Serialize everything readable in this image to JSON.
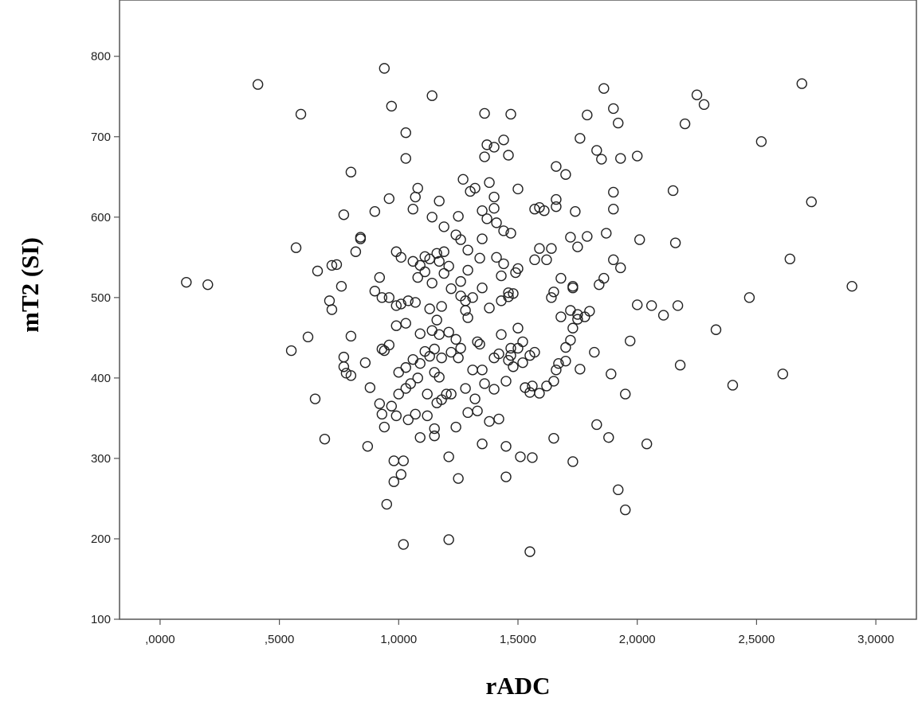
{
  "chart_data": {
    "type": "scatter",
    "title": "",
    "xlabel": "rADC",
    "ylabel": "mT2 (SI)",
    "xlim": [
      -0.17,
      3.17
    ],
    "ylim": [
      100,
      870
    ],
    "x_ticks": [
      0,
      0.5,
      1.0,
      1.5,
      2.0,
      2.5,
      3.0
    ],
    "x_tick_labels": [
      ",0000",
      ",5000",
      "1,0000",
      "1,5000",
      "2,0000",
      "2,5000",
      "3,0000"
    ],
    "y_ticks": [
      100,
      200,
      300,
      400,
      500,
      600,
      700,
      800
    ],
    "y_tick_labels": [
      "100",
      "200",
      "300",
      "400",
      "500",
      "600",
      "700",
      "800"
    ],
    "grid": false,
    "legend": "none",
    "marker": "open-circle",
    "marker_color": "#222222",
    "points": [
      [
        0.41,
        765
      ],
      [
        0.94,
        785
      ],
      [
        1.14,
        751
      ],
      [
        0.59,
        728
      ],
      [
        0.97,
        738
      ],
      [
        1.36,
        729
      ],
      [
        1.47,
        728
      ],
      [
        1.79,
        727
      ],
      [
        1.86,
        760
      ],
      [
        1.9,
        735
      ],
      [
        2.25,
        752
      ],
      [
        2.28,
        740
      ],
      [
        2.69,
        766
      ],
      [
        1.92,
        717
      ],
      [
        2.2,
        716
      ],
      [
        1.03,
        705
      ],
      [
        1.37,
        690
      ],
      [
        1.4,
        687
      ],
      [
        1.44,
        696
      ],
      [
        1.36,
        675
      ],
      [
        1.46,
        677
      ],
      [
        1.76,
        698
      ],
      [
        1.83,
        683
      ],
      [
        1.85,
        672
      ],
      [
        1.93,
        673
      ],
      [
        2.0,
        676
      ],
      [
        2.52,
        694
      ],
      [
        1.03,
        673
      ],
      [
        0.8,
        656
      ],
      [
        1.66,
        663
      ],
      [
        1.7,
        653
      ],
      [
        1.27,
        647
      ],
      [
        1.38,
        643
      ],
      [
        1.32,
        636
      ],
      [
        1.3,
        632
      ],
      [
        1.5,
        635
      ],
      [
        1.08,
        636
      ],
      [
        1.07,
        625
      ],
      [
        0.96,
        623
      ],
      [
        1.17,
        620
      ],
      [
        1.4,
        625
      ],
      [
        1.66,
        622
      ],
      [
        1.9,
        631
      ],
      [
        2.15,
        633
      ],
      [
        2.73,
        619
      ],
      [
        0.77,
        603
      ],
      [
        0.9,
        607
      ],
      [
        1.06,
        610
      ],
      [
        1.25,
        601
      ],
      [
        1.14,
        600
      ],
      [
        1.35,
        608
      ],
      [
        1.4,
        611
      ],
      [
        1.37,
        598
      ],
      [
        1.41,
        593
      ],
      [
        1.57,
        610
      ],
      [
        1.61,
        608
      ],
      [
        1.66,
        613
      ],
      [
        1.59,
        612
      ],
      [
        1.74,
        607
      ],
      [
        1.9,
        610
      ],
      [
        0.84,
        573
      ],
      [
        0.84,
        575
      ],
      [
        1.19,
        588
      ],
      [
        1.24,
        578
      ],
      [
        1.26,
        572
      ],
      [
        1.35,
        573
      ],
      [
        1.44,
        583
      ],
      [
        1.47,
        580
      ],
      [
        1.57,
        547
      ],
      [
        1.62,
        547
      ],
      [
        1.59,
        561
      ],
      [
        1.64,
        561
      ],
      [
        1.72,
        575
      ],
      [
        1.75,
        563
      ],
      [
        1.79,
        576
      ],
      [
        1.87,
        580
      ],
      [
        2.01,
        572
      ],
      [
        2.16,
        568
      ],
      [
        0.57,
        562
      ],
      [
        0.82,
        557
      ],
      [
        0.99,
        557
      ],
      [
        1.01,
        550
      ],
      [
        1.06,
        545
      ],
      [
        1.09,
        540
      ],
      [
        1.11,
        551
      ],
      [
        1.13,
        548
      ],
      [
        1.16,
        555
      ],
      [
        1.19,
        557
      ],
      [
        1.17,
        545
      ],
      [
        1.21,
        539
      ],
      [
        1.26,
        520
      ],
      [
        1.29,
        559
      ],
      [
        1.34,
        549
      ],
      [
        1.41,
        550
      ],
      [
        1.44,
        542
      ],
      [
        1.5,
        536
      ],
      [
        1.49,
        531
      ],
      [
        1.43,
        527
      ],
      [
        1.65,
        507
      ],
      [
        1.68,
        524
      ],
      [
        1.73,
        514
      ],
      [
        1.73,
        512
      ],
      [
        1.84,
        516
      ],
      [
        1.86,
        524
      ],
      [
        1.9,
        547
      ],
      [
        1.93,
        537
      ],
      [
        2.64,
        548
      ],
      [
        0.66,
        533
      ],
      [
        0.72,
        540
      ],
      [
        0.74,
        541
      ],
      [
        0.76,
        514
      ],
      [
        0.92,
        525
      ],
      [
        1.08,
        525
      ],
      [
        1.11,
        532
      ],
      [
        1.14,
        518
      ],
      [
        1.19,
        530
      ],
      [
        1.22,
        511
      ],
      [
        1.29,
        534
      ],
      [
        1.35,
        512
      ],
      [
        0.11,
        519
      ],
      [
        0.2,
        516
      ],
      [
        0.71,
        496
      ],
      [
        0.72,
        485
      ],
      [
        0.9,
        508
      ],
      [
        0.93,
        500
      ],
      [
        0.96,
        500
      ],
      [
        0.99,
        490
      ],
      [
        1.01,
        492
      ],
      [
        1.04,
        496
      ],
      [
        1.07,
        494
      ],
      [
        1.13,
        486
      ],
      [
        1.18,
        489
      ],
      [
        1.26,
        502
      ],
      [
        1.28,
        496
      ],
      [
        1.31,
        500
      ],
      [
        1.28,
        484
      ],
      [
        1.38,
        487
      ],
      [
        1.43,
        496
      ],
      [
        1.46,
        501
      ],
      [
        1.46,
        506
      ],
      [
        1.48,
        505
      ],
      [
        1.64,
        500
      ],
      [
        1.68,
        476
      ],
      [
        1.72,
        484
      ],
      [
        1.75,
        479
      ],
      [
        1.78,
        476
      ],
      [
        1.8,
        483
      ],
      [
        1.73,
        462
      ],
      [
        1.75,
        473
      ],
      [
        2.0,
        491
      ],
      [
        2.06,
        490
      ],
      [
        2.11,
        478
      ],
      [
        2.17,
        490
      ],
      [
        2.47,
        500
      ],
      [
        2.9,
        514
      ],
      [
        0.8,
        452
      ],
      [
        0.93,
        436
      ],
      [
        0.96,
        441
      ],
      [
        0.99,
        465
      ],
      [
        1.03,
        468
      ],
      [
        1.09,
        455
      ],
      [
        1.14,
        459
      ],
      [
        1.16,
        472
      ],
      [
        1.17,
        454
      ],
      [
        1.21,
        457
      ],
      [
        1.24,
        448
      ],
      [
        1.29,
        475
      ],
      [
        1.33,
        445
      ],
      [
        1.34,
        442
      ],
      [
        1.43,
        454
      ],
      [
        1.47,
        428
      ],
      [
        1.5,
        462
      ],
      [
        1.52,
        445
      ],
      [
        1.57,
        432
      ],
      [
        1.7,
        438
      ],
      [
        1.72,
        447
      ],
      [
        1.82,
        432
      ],
      [
        1.97,
        446
      ],
      [
        2.33,
        460
      ],
      [
        0.55,
        434
      ],
      [
        0.62,
        451
      ],
      [
        0.77,
        426
      ],
      [
        0.77,
        414
      ],
      [
        0.78,
        406
      ],
      [
        0.86,
        419
      ],
      [
        0.94,
        434
      ],
      [
        1.0,
        407
      ],
      [
        1.03,
        413
      ],
      [
        1.06,
        423
      ],
      [
        1.09,
        418
      ],
      [
        1.11,
        433
      ],
      [
        1.13,
        427
      ],
      [
        1.15,
        436
      ],
      [
        1.18,
        425
      ],
      [
        1.22,
        432
      ],
      [
        1.26,
        437
      ],
      [
        1.25,
        425
      ],
      [
        1.31,
        410
      ],
      [
        1.35,
        410
      ],
      [
        1.4,
        425
      ],
      [
        1.42,
        430
      ],
      [
        1.46,
        422
      ],
      [
        1.47,
        437
      ],
      [
        1.48,
        414
      ],
      [
        1.5,
        437
      ],
      [
        1.52,
        419
      ],
      [
        1.55,
        428
      ],
      [
        1.66,
        410
      ],
      [
        1.67,
        418
      ],
      [
        1.7,
        421
      ],
      [
        1.76,
        411
      ],
      [
        1.89,
        405
      ],
      [
        2.18,
        416
      ],
      [
        2.61,
        405
      ],
      [
        0.8,
        403
      ],
      [
        0.88,
        388
      ],
      [
        0.92,
        368
      ],
      [
        0.93,
        355
      ],
      [
        0.97,
        365
      ],
      [
        1.0,
        380
      ],
      [
        1.03,
        387
      ],
      [
        1.05,
        393
      ],
      [
        1.08,
        400
      ],
      [
        1.12,
        380
      ],
      [
        1.15,
        407
      ],
      [
        1.17,
        401
      ],
      [
        1.2,
        380
      ],
      [
        1.22,
        380
      ],
      [
        1.28,
        387
      ],
      [
        1.32,
        374
      ],
      [
        1.36,
        393
      ],
      [
        1.4,
        386
      ],
      [
        1.45,
        396
      ],
      [
        1.53,
        388
      ],
      [
        1.56,
        390
      ],
      [
        1.59,
        381
      ],
      [
        1.62,
        390
      ],
      [
        1.65,
        396
      ],
      [
        1.95,
        380
      ],
      [
        2.4,
        391
      ],
      [
        0.65,
        374
      ],
      [
        0.94,
        339
      ],
      [
        0.99,
        353
      ],
      [
        1.04,
        348
      ],
      [
        1.07,
        355
      ],
      [
        1.09,
        326
      ],
      [
        1.12,
        353
      ],
      [
        1.15,
        337
      ],
      [
        1.16,
        369
      ],
      [
        1.18,
        373
      ],
      [
        1.24,
        339
      ],
      [
        1.29,
        357
      ],
      [
        1.33,
        359
      ],
      [
        1.38,
        346
      ],
      [
        1.42,
        349
      ],
      [
        1.15,
        328
      ],
      [
        1.55,
        382
      ],
      [
        0.69,
        324
      ],
      [
        0.87,
        315
      ],
      [
        0.98,
        297
      ],
      [
        1.02,
        297
      ],
      [
        1.21,
        302
      ],
      [
        1.35,
        318
      ],
      [
        1.45,
        315
      ],
      [
        1.51,
        302
      ],
      [
        1.56,
        301
      ],
      [
        1.65,
        325
      ],
      [
        1.73,
        296
      ],
      [
        1.83,
        342
      ],
      [
        1.88,
        326
      ],
      [
        2.04,
        318
      ],
      [
        0.95,
        243
      ],
      [
        0.98,
        271
      ],
      [
        1.01,
        280
      ],
      [
        1.25,
        275
      ],
      [
        1.45,
        277
      ],
      [
        1.92,
        261
      ],
      [
        1.95,
        236
      ],
      [
        1.02,
        193
      ],
      [
        1.21,
        199
      ],
      [
        1.55,
        184
      ]
    ]
  }
}
